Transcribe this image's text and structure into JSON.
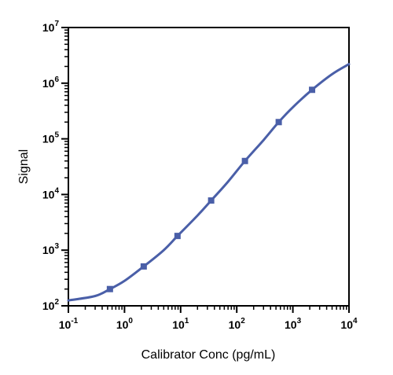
{
  "chart_data": {
    "type": "scatter",
    "title": "",
    "xlabel": "Calibrator Conc (pg/mL)",
    "ylabel": "Signal",
    "x_scale": "log",
    "y_scale": "log",
    "xlim": [
      0.1,
      10000
    ],
    "ylim": [
      100,
      10000000
    ],
    "grid": false,
    "legend": "none",
    "x_ticks": [
      {
        "value": 0.1,
        "base": "10",
        "exp": "-1"
      },
      {
        "value": 1,
        "base": "10",
        "exp": "0"
      },
      {
        "value": 10,
        "base": "10",
        "exp": "1"
      },
      {
        "value": 100,
        "base": "10",
        "exp": "2"
      },
      {
        "value": 1000,
        "base": "10",
        "exp": "3"
      },
      {
        "value": 10000,
        "base": "10",
        "exp": "4"
      }
    ],
    "y_ticks": [
      {
        "value": 100,
        "base": "10",
        "exp": "2"
      },
      {
        "value": 1000,
        "base": "10",
        "exp": "3"
      },
      {
        "value": 10000,
        "base": "10",
        "exp": "4"
      },
      {
        "value": 100000,
        "base": "10",
        "exp": "5"
      },
      {
        "value": 1000000,
        "base": "10",
        "exp": "6"
      },
      {
        "value": 10000000,
        "base": "10",
        "exp": "7"
      }
    ],
    "series": [
      {
        "color": "#4a5fa8",
        "marker": "square",
        "points": [
          {
            "x": 0.55,
            "y": 200
          },
          {
            "x": 2.2,
            "y": 510
          },
          {
            "x": 8.8,
            "y": 1800
          },
          {
            "x": 35,
            "y": 7800
          },
          {
            "x": 140,
            "y": 40000
          },
          {
            "x": 560,
            "y": 200000
          },
          {
            "x": 2200,
            "y": 760000
          }
        ]
      }
    ],
    "fit_curve": {
      "color": "#4a5fa8",
      "points": [
        {
          "x": 0.1,
          "y": 125
        },
        {
          "x": 0.3,
          "y": 150
        },
        {
          "x": 0.55,
          "y": 200
        },
        {
          "x": 1,
          "y": 280
        },
        {
          "x": 2.2,
          "y": 510
        },
        {
          "x": 5,
          "y": 1000
        },
        {
          "x": 8.8,
          "y": 1800
        },
        {
          "x": 20,
          "y": 4200
        },
        {
          "x": 35,
          "y": 7800
        },
        {
          "x": 70,
          "y": 17000
        },
        {
          "x": 140,
          "y": 40000
        },
        {
          "x": 300,
          "y": 95000
        },
        {
          "x": 560,
          "y": 200000
        },
        {
          "x": 1000,
          "y": 370000
        },
        {
          "x": 2200,
          "y": 760000
        },
        {
          "x": 5000,
          "y": 1450000
        },
        {
          "x": 10000,
          "y": 2200000
        }
      ]
    }
  }
}
